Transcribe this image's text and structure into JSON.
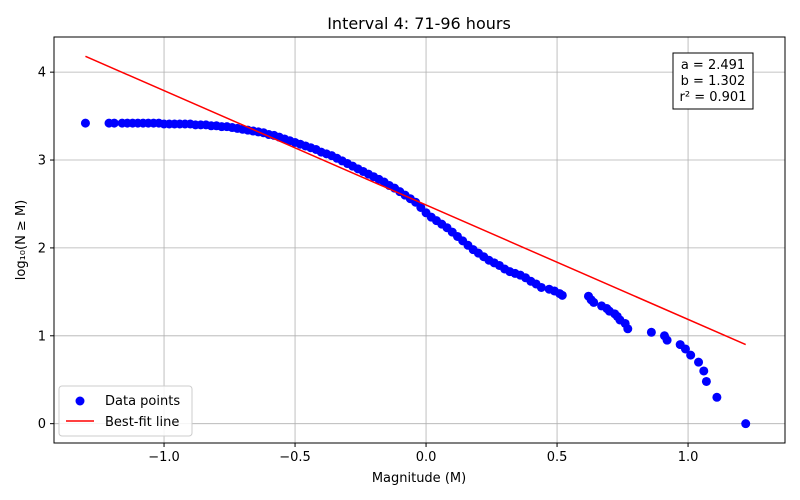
{
  "chart_data": {
    "type": "scatter",
    "title": "Interval 4: 71-96 hours",
    "xlabel": "Magnitude (M)",
    "ylabel": "log₁₀(N ≥ M)",
    "xlim": [
      -1.42,
      1.37
    ],
    "ylim": [
      -0.22,
      4.4
    ],
    "xticks": [
      -1.0,
      -0.5,
      0.0,
      0.5,
      1.0
    ],
    "xtick_labels": [
      "−1.0",
      "−0.5",
      "0.0",
      "0.5",
      "1.0"
    ],
    "yticks": [
      0,
      1,
      2,
      3,
      4
    ],
    "ytick_labels": [
      "0",
      "1",
      "2",
      "3",
      "4"
    ],
    "grid": true,
    "legend_position": "lower-left",
    "series": [
      {
        "name": "Data points",
        "kind": "scatter",
        "color": "#0000ff",
        "x": [
          -1.3,
          -1.21,
          -1.19,
          -1.16,
          -1.14,
          -1.12,
          -1.1,
          -1.08,
          -1.06,
          -1.04,
          -1.02,
          -1.0,
          -0.98,
          -0.96,
          -0.94,
          -0.92,
          -0.9,
          -0.88,
          -0.86,
          -0.84,
          -0.82,
          -0.8,
          -0.78,
          -0.76,
          -0.74,
          -0.72,
          -0.7,
          -0.68,
          -0.66,
          -0.64,
          -0.62,
          -0.6,
          -0.58,
          -0.56,
          -0.54,
          -0.52,
          -0.5,
          -0.48,
          -0.46,
          -0.44,
          -0.42,
          -0.4,
          -0.38,
          -0.36,
          -0.34,
          -0.32,
          -0.3,
          -0.28,
          -0.26,
          -0.24,
          -0.22,
          -0.2,
          -0.18,
          -0.16,
          -0.14,
          -0.12,
          -0.1,
          -0.08,
          -0.06,
          -0.04,
          -0.02,
          0.0,
          0.02,
          0.04,
          0.06,
          0.08,
          0.1,
          0.12,
          0.14,
          0.16,
          0.18,
          0.2,
          0.22,
          0.24,
          0.26,
          0.28,
          0.3,
          0.32,
          0.34,
          0.36,
          0.38,
          0.4,
          0.42,
          0.44,
          0.47,
          0.49,
          0.51,
          0.52,
          0.62,
          0.63,
          0.64,
          0.67,
          0.69,
          0.7,
          0.72,
          0.73,
          0.74,
          0.76,
          0.77,
          0.86,
          0.91,
          0.92,
          0.97,
          0.99,
          1.01,
          1.04,
          1.06,
          1.07,
          1.11,
          1.22
        ],
        "y": [
          3.42,
          3.42,
          3.42,
          3.42,
          3.42,
          3.42,
          3.42,
          3.42,
          3.42,
          3.42,
          3.42,
          3.41,
          3.41,
          3.41,
          3.41,
          3.41,
          3.41,
          3.4,
          3.4,
          3.4,
          3.39,
          3.39,
          3.38,
          3.38,
          3.37,
          3.36,
          3.35,
          3.34,
          3.33,
          3.32,
          3.31,
          3.29,
          3.28,
          3.26,
          3.24,
          3.22,
          3.2,
          3.18,
          3.16,
          3.14,
          3.12,
          3.09,
          3.07,
          3.05,
          3.02,
          2.99,
          2.96,
          2.93,
          2.9,
          2.87,
          2.84,
          2.81,
          2.78,
          2.75,
          2.71,
          2.68,
          2.64,
          2.6,
          2.56,
          2.52,
          2.46,
          2.4,
          2.35,
          2.31,
          2.27,
          2.23,
          2.18,
          2.13,
          2.08,
          2.03,
          1.98,
          1.94,
          1.9,
          1.86,
          1.83,
          1.8,
          1.76,
          1.73,
          1.71,
          1.69,
          1.66,
          1.62,
          1.59,
          1.55,
          1.53,
          1.51,
          1.48,
          1.46,
          1.45,
          1.41,
          1.38,
          1.34,
          1.31,
          1.28,
          1.25,
          1.22,
          1.18,
          1.14,
          1.08,
          1.04,
          1.0,
          0.95,
          0.9,
          0.85,
          0.78,
          0.7,
          0.6,
          0.48,
          0.3,
          0.0
        ]
      },
      {
        "name": "Best-fit line",
        "kind": "line",
        "color": "#ff0000",
        "x": [
          -1.3,
          1.22
        ],
        "y": [
          4.18,
          0.9
        ]
      }
    ],
    "annotation": {
      "lines": [
        "a = 2.491",
        "b = 1.302",
        "r² = 0.901"
      ]
    }
  }
}
